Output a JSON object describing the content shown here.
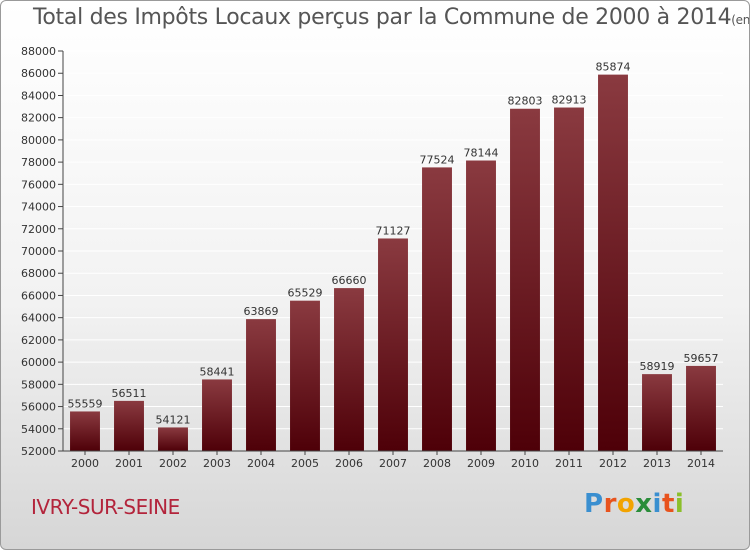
{
  "header": {
    "title": "Total des Impôts Locaux perçus par la Commune de 2000 à 2014",
    "unit": "(en milliers d'€)"
  },
  "footer": {
    "commune": "IVRY-SUR-SEINE",
    "logo_letters": [
      "P",
      "r",
      "o",
      "x",
      "i",
      "t",
      "i"
    ],
    "logo_colors": [
      "#3a8fd0",
      "#e8531d",
      "#f2a300",
      "#2a8d3a",
      "#3a8fd0",
      "#e8531d",
      "#8bbf2a"
    ]
  },
  "colors": {
    "bar_top": "#8a3a40",
    "bar_bottom": "#4e0008",
    "grid": "#ffffff",
    "tick_text": "#333333",
    "label_text": "#333333"
  },
  "chart_data": {
    "type": "bar",
    "title": "Total des Impôts Locaux perçus par la Commune de 2000 à 2014",
    "xlabel": "",
    "ylabel": "",
    "categories": [
      "2000",
      "2001",
      "2002",
      "2003",
      "2004",
      "2005",
      "2006",
      "2007",
      "2008",
      "2009",
      "2010",
      "2011",
      "2012",
      "2013",
      "2014"
    ],
    "values": [
      55559,
      56511,
      54121,
      58441,
      63869,
      65529,
      66660,
      71127,
      77524,
      78144,
      82803,
      82913,
      85874,
      58919,
      59657
    ],
    "ylim": [
      52000,
      88000
    ],
    "yticks": [
      52000,
      54000,
      56000,
      58000,
      60000,
      62000,
      64000,
      66000,
      68000,
      70000,
      72000,
      74000,
      76000,
      78000,
      80000,
      82000,
      84000,
      86000,
      88000
    ],
    "grid": true
  }
}
